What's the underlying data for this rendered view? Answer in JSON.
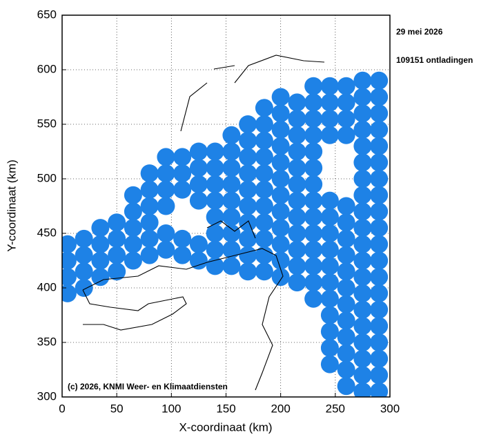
{
  "chart_data": {
    "type": "scatter",
    "date": "29 mei 2026",
    "count_label": "109151 ontladingen",
    "copyright": "(c) 2026, KNMI Weer- en Klimaatdiensten",
    "xlabel": "X-coordinaat (km)",
    "ylabel": "Y-coordinaat (km)",
    "color": "#1e82e6",
    "grid": true,
    "xlim": [
      0,
      300
    ],
    "ylim": [
      300,
      650
    ],
    "xticks": [
      0,
      50,
      100,
      150,
      200,
      250,
      300
    ],
    "yticks": [
      300,
      350,
      400,
      450,
      500,
      550,
      600,
      650
    ],
    "x": [
      5,
      5,
      5,
      5,
      20,
      20,
      20,
      20,
      35,
      35,
      35,
      35,
      50,
      50,
      50,
      50,
      65,
      65,
      65,
      65,
      65,
      80,
      80,
      80,
      80,
      80,
      80,
      95,
      95,
      95,
      95,
      95,
      95,
      110,
      110,
      110,
      110,
      110,
      125,
      125,
      125,
      125,
      125,
      125,
      140,
      140,
      140,
      140,
      140,
      140,
      140,
      140,
      155,
      155,
      155,
      155,
      155,
      155,
      155,
      155,
      155,
      170,
      170,
      170,
      170,
      170,
      170,
      170,
      170,
      170,
      170,
      185,
      185,
      185,
      185,
      185,
      185,
      185,
      185,
      185,
      185,
      185,
      200,
      200,
      200,
      200,
      200,
      200,
      200,
      200,
      200,
      200,
      200,
      200,
      215,
      215,
      215,
      215,
      215,
      215,
      215,
      215,
      215,
      215,
      215,
      215,
      230,
      230,
      230,
      230,
      230,
      230,
      230,
      230,
      230,
      230,
      230,
      230,
      230,
      230,
      245,
      245,
      245,
      245,
      245,
      245,
      245,
      245,
      245,
      245,
      245,
      245,
      245,
      245,
      245,
      260,
      260,
      260,
      260,
      260,
      260,
      260,
      260,
      260,
      260,
      260,
      260,
      260,
      260,
      260,
      260,
      275,
      275,
      275,
      275,
      275,
      275,
      275,
      275,
      275,
      275,
      275,
      275,
      275,
      275,
      275,
      275,
      275,
      275,
      275,
      275,
      290,
      290,
      290,
      290,
      290,
      290,
      290,
      290,
      290,
      290,
      290,
      290,
      290,
      290,
      290,
      290,
      290,
      290,
      290,
      290
    ],
    "values": [
      395,
      410,
      425,
      440,
      400,
      415,
      430,
      445,
      410,
      425,
      440,
      455,
      415,
      430,
      445,
      460,
      425,
      440,
      455,
      470,
      485,
      430,
      445,
      460,
      475,
      490,
      505,
      435,
      450,
      475,
      490,
      505,
      520,
      430,
      445,
      490,
      505,
      520,
      425,
      440,
      480,
      495,
      510,
      525,
      420,
      435,
      450,
      465,
      480,
      495,
      510,
      525,
      420,
      435,
      450,
      465,
      480,
      495,
      510,
      525,
      540,
      415,
      430,
      445,
      460,
      475,
      490,
      505,
      520,
      535,
      550,
      415,
      430,
      445,
      460,
      475,
      490,
      505,
      520,
      535,
      550,
      565,
      410,
      425,
      440,
      455,
      470,
      485,
      500,
      515,
      530,
      545,
      560,
      575,
      405,
      420,
      435,
      450,
      465,
      480,
      495,
      510,
      525,
      540,
      555,
      570,
      390,
      405,
      420,
      435,
      450,
      465,
      480,
      495,
      510,
      525,
      540,
      555,
      570,
      585,
      330,
      345,
      360,
      375,
      390,
      405,
      420,
      435,
      450,
      465,
      480,
      540,
      555,
      570,
      585,
      310,
      325,
      340,
      355,
      370,
      385,
      400,
      415,
      430,
      445,
      460,
      475,
      540,
      555,
      570,
      585,
      305,
      320,
      335,
      350,
      365,
      380,
      395,
      410,
      425,
      440,
      455,
      470,
      485,
      500,
      515,
      530,
      545,
      560,
      575,
      590,
      305,
      320,
      335,
      350,
      365,
      380,
      395,
      410,
      425,
      440,
      455,
      470,
      485,
      500,
      515,
      530,
      545,
      560,
      575,
      590
    ]
  }
}
